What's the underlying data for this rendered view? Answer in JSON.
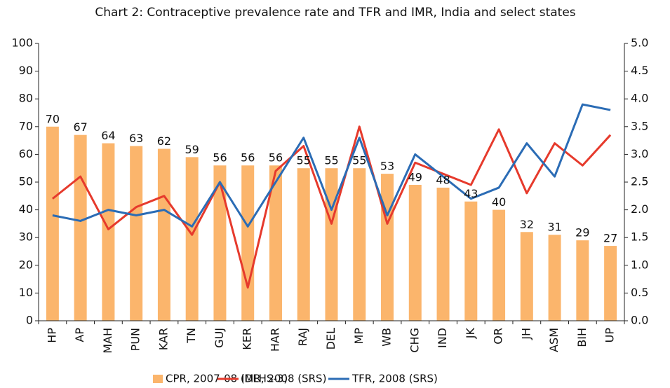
{
  "chart_data": {
    "type": "bar-line",
    "title": "Chart 2:  Contraceptive prevalence rate and TFR and IMR, India and select states",
    "categories": [
      "HP",
      "AP",
      "MAH",
      "PUN",
      "KAR",
      "TN",
      "GUJ",
      "KER",
      "HAR",
      "RAJ",
      "DEL",
      "MP",
      "WB",
      "CHG",
      "IND",
      "JK",
      "OR",
      "JH",
      "ASM",
      "BIH",
      "UP"
    ],
    "series": [
      {
        "name": "CPR, 2007-08 (DLHS-3)",
        "type": "bar",
        "color": "#fbb56c",
        "axis": "y",
        "values": [
          70,
          67,
          64,
          63,
          62,
          59,
          56,
          56,
          56,
          55,
          55,
          55,
          53,
          49,
          48,
          43,
          40,
          32,
          31,
          29,
          27
        ]
      },
      {
        "name": "IMR, 2008 (SRS)",
        "type": "line",
        "color": "#e63a2c",
        "axis": "y",
        "values": [
          44,
          52,
          33,
          41,
          45,
          31,
          50,
          12,
          54,
          63,
          35,
          70,
          35,
          57,
          53,
          49,
          69,
          46,
          64,
          56,
          67
        ]
      },
      {
        "name": "TFR, 2008 (SRS)",
        "type": "line",
        "color": "#2b6cb5",
        "axis": "y2",
        "values": [
          1.9,
          1.8,
          2.0,
          1.9,
          2.0,
          1.7,
          2.5,
          1.7,
          2.5,
          3.3,
          2.0,
          3.3,
          1.9,
          3.0,
          2.6,
          2.2,
          2.4,
          3.2,
          2.6,
          3.9,
          3.8
        ]
      }
    ],
    "ylim": [
      0,
      100
    ],
    "yticks": [
      0,
      10,
      20,
      30,
      40,
      50,
      60,
      70,
      80,
      90,
      100
    ],
    "y2lim": [
      0,
      5
    ],
    "y2ticks": [
      {
        "value": 0,
        "label": "0.0"
      },
      {
        "value": 0.5,
        "label": "0.5"
      },
      {
        "value": 1,
        "label": "1.0"
      },
      {
        "value": 1.5,
        "label": "1.5"
      },
      {
        "value": 2,
        "label": "2.0"
      },
      {
        "value": 2.5,
        "label": "2.5"
      },
      {
        "value": 3,
        "label": "3.0"
      },
      {
        "value": 3.5,
        "label": "3.5"
      },
      {
        "value": 4,
        "label": "4.0"
      },
      {
        "value": 4.5,
        "label": "4.5"
      },
      {
        "value": 5,
        "label": "5.0"
      }
    ],
    "legend": "bottom"
  }
}
